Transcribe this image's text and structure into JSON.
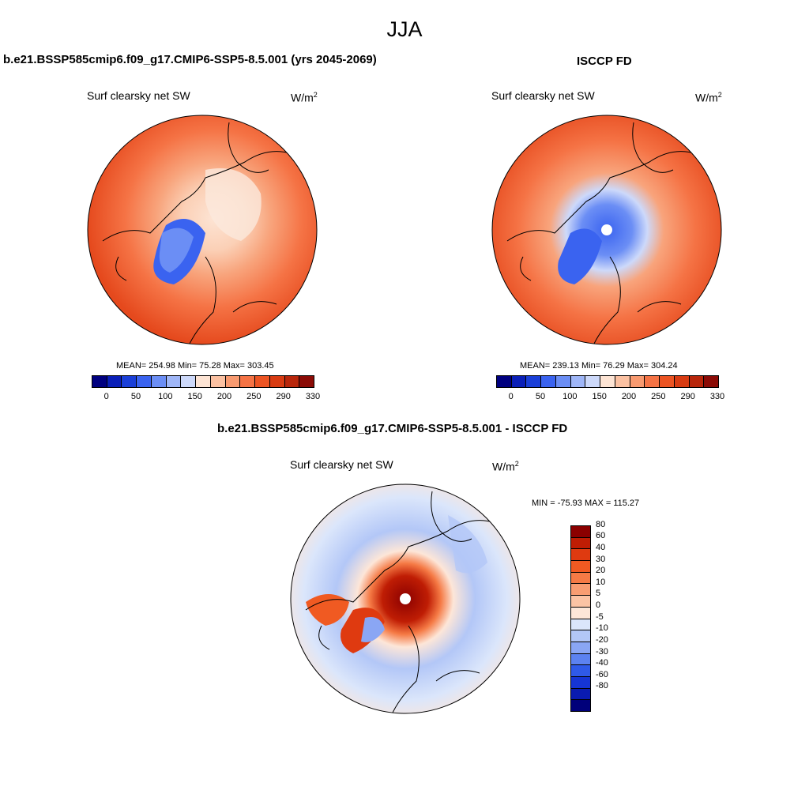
{
  "title": "JJA",
  "panels": {
    "model": {
      "title": "b.e21.BSSP585cmip6.f09_g17.CMIP6-SSP5-8.5.001 (yrs 2045-2069)",
      "variable": "Surf clearsky net SW",
      "units_base": "W/m",
      "units_exp": "2",
      "stats": "MEAN= 254.98  Min=  75.28  Max= 303.45"
    },
    "obs": {
      "title": "ISCCP FD",
      "variable": "Surf clearsky net SW",
      "units_base": "W/m",
      "units_exp": "2",
      "stats": "MEAN= 239.13  Min=  76.29  Max= 304.24"
    },
    "diff": {
      "title": "b.e21.BSSP585cmip6.f09_g17.CMIP6-SSP5-8.5.001 - ISCCP FD",
      "variable": "Surf clearsky net SW",
      "units_base": "W/m",
      "units_exp": "2",
      "stats": "MIN = -75.93 MAX = 115.27"
    }
  },
  "colorbar_abs": {
    "tick_labels": [
      "0",
      "50",
      "100",
      "150",
      "200",
      "250",
      "290",
      "330"
    ],
    "colors": [
      "#00007f",
      "#0a1fb8",
      "#1a3fd8",
      "#3a63f0",
      "#6b8ef5",
      "#9fb6f7",
      "#cdd9fa",
      "#fde4d4",
      "#fbc1a2",
      "#f89a70",
      "#f57345",
      "#ec5423",
      "#d83b12",
      "#b8260b",
      "#8b0b06"
    ]
  },
  "colorbar_diff": {
    "tick_labels": [
      "80",
      "60",
      "40",
      "30",
      "20",
      "10",
      "5",
      "0",
      "-5",
      "-10",
      "-20",
      "-30",
      "-40",
      "-60",
      "-80"
    ],
    "colors": [
      "#8b0000",
      "#bf1d04",
      "#df3a10",
      "#f05a22",
      "#f57a45",
      "#f89d72",
      "#fbc3a4",
      "#fde6d8",
      "#dbe6fb",
      "#b3c7f7",
      "#8aa6f4",
      "#5c82f0",
      "#2f5ae8",
      "#1635d4",
      "#0a1bb0",
      "#00007a"
    ]
  }
}
